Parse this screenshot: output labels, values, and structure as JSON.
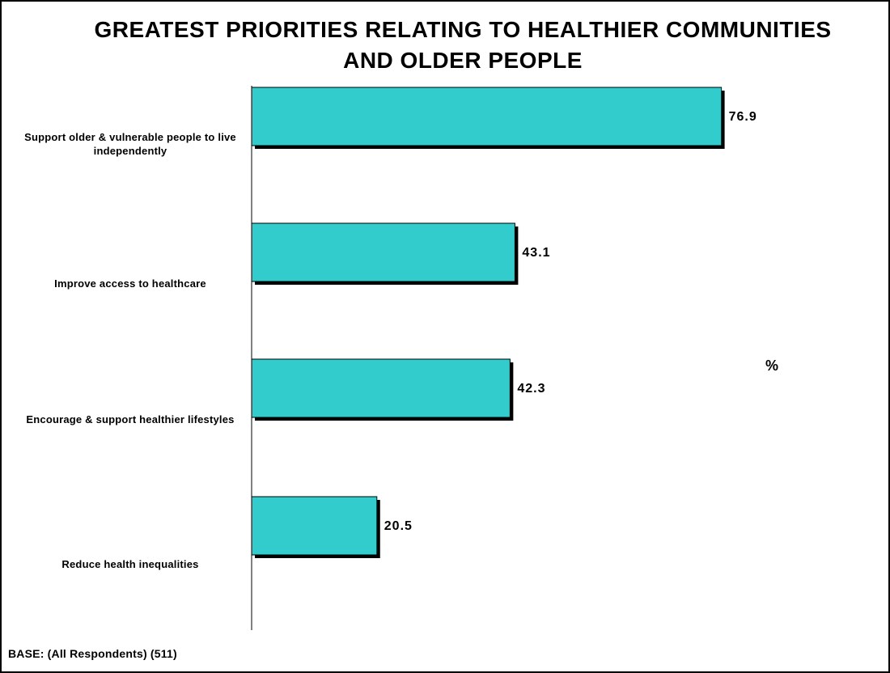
{
  "chart_data": {
    "type": "bar",
    "orientation": "horizontal",
    "title": "GREATEST PRIORITIES RELATING TO HEALTHIER COMMUNITIES AND OLDER PEOPLE",
    "categories": [
      "Support older & vulnerable people to live independently",
      "Improve access to healthcare",
      "Encourage & support healthier lifestyles",
      "Reduce health inequalities"
    ],
    "values": [
      76.9,
      43.1,
      42.3,
      20.5
    ],
    "value_labels": [
      "76.9",
      "43.1",
      "42.3",
      "20.5"
    ],
    "unit_label": "%",
    "xlim": [
      0,
      100
    ],
    "bar_color": "#33CCCC",
    "shadow_color": "#000000",
    "grid": false,
    "legend": "none"
  },
  "footer": {
    "base": "BASE:  (All Respondents) (511)"
  }
}
